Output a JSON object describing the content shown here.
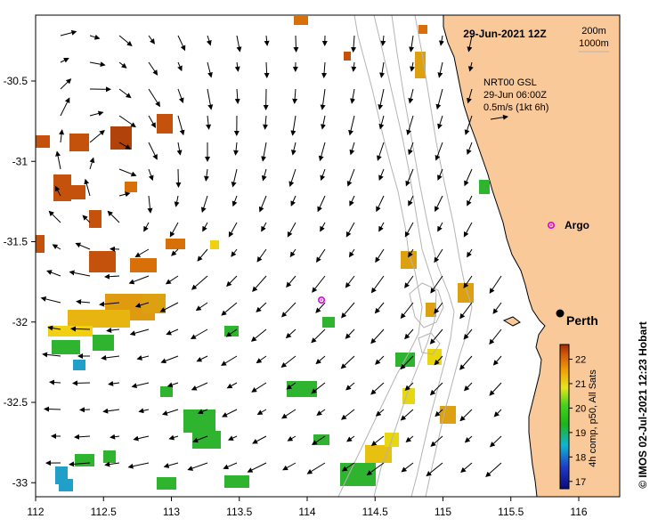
{
  "title": "29-Jun-2021 12Z",
  "depth_contours": [
    "200m",
    "1000m"
  ],
  "current_source": "NRT00 GSL",
  "current_time": "29-Jun 06:00Z",
  "vector_scale": "0.5m/s (1kt 6h)",
  "colorbar": {
    "label": "4h comp, p50, All Sats",
    "ticks": [
      "22",
      "21",
      "20",
      "19",
      "18",
      "17"
    ],
    "min": 16.7,
    "max": 22.6
  },
  "credit": "© IMOS 02-Jul-2021 12:23 Hobart",
  "places": {
    "argo": "Argo",
    "perth": "Perth"
  },
  "axes": {
    "lon_ticks": [
      "112",
      "112.5",
      "113",
      "113.5",
      "114",
      "114.5",
      "115",
      "115.5",
      "116"
    ],
    "lat_ticks": [
      "-30.5",
      "-31",
      "-31.5",
      "-32",
      "-32.5",
      "-33"
    ],
    "lon_range": [
      112,
      116.3
    ],
    "lat_range": [
      -33.1,
      -30.0
    ]
  },
  "colors": {
    "land": "#f9c99a",
    "contour": "#b4b4b4",
    "argo_marker": "#e000e0",
    "perth_marker": "#000000"
  }
}
